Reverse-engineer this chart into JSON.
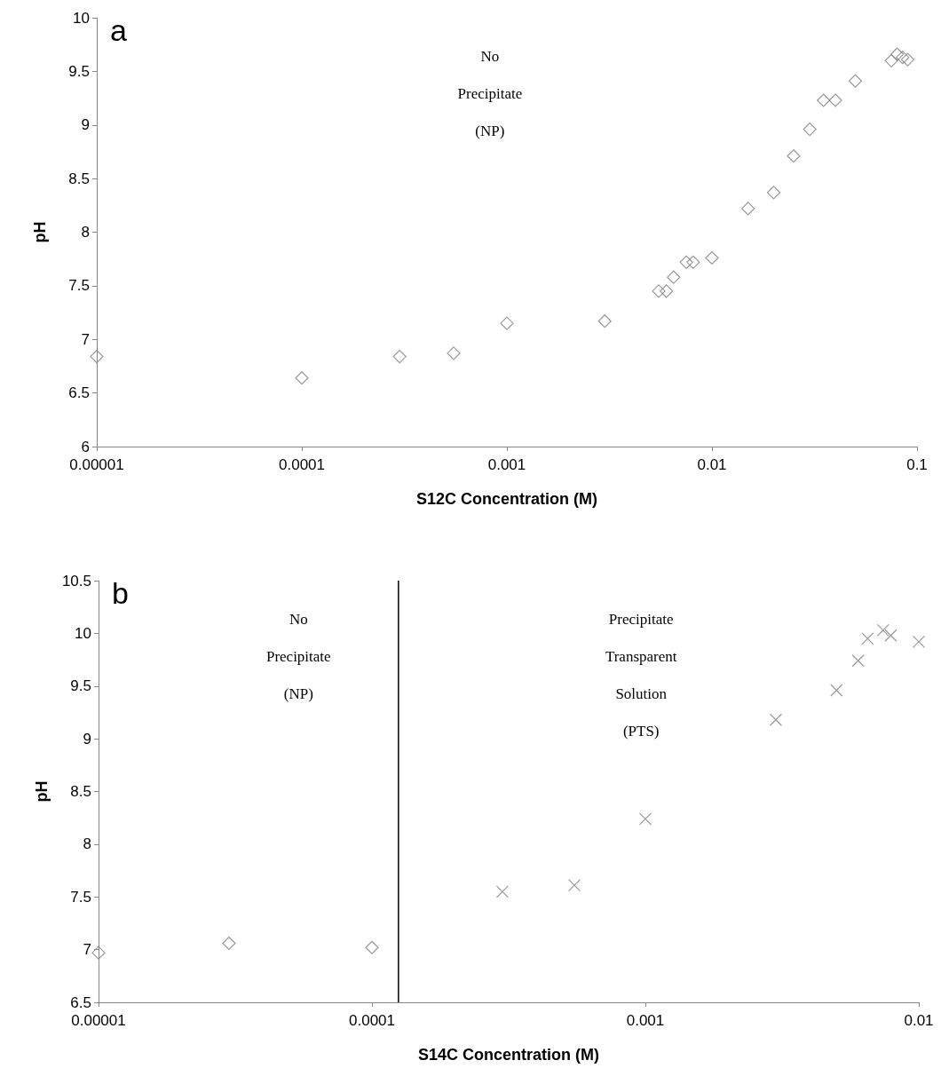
{
  "chart_data": [
    {
      "type": "scatter",
      "title": "a",
      "xlabel": "S12C Concentration (M)",
      "ylabel": "pH",
      "log": "x",
      "grid": false,
      "xlim": [
        1e-05,
        0.1
      ],
      "xticks": [
        {
          "value": 1e-05,
          "label": "0.00001"
        },
        0.0001,
        0.001,
        0.01,
        0.1
      ],
      "ylim": [
        6,
        10
      ],
      "yticks": [
        6,
        6.5,
        7,
        7.5,
        8,
        8.5,
        9,
        9.5,
        10
      ],
      "annotations": [
        "No Precipitate (NP)"
      ],
      "series": [
        {
          "color": "#808080",
          "marker": "diamond",
          "x": [
            1e-05,
            0.0001,
            0.0003,
            0.00055,
            0.001,
            0.003,
            0.0055,
            0.006,
            0.0065,
            0.0075,
            0.0081,
            0.01,
            0.015,
            0.02,
            0.025,
            0.03,
            0.035,
            0.04,
            0.05,
            0.075,
            0.08,
            0.085,
            0.09
          ],
          "values": [
            6.84,
            6.64,
            6.84,
            6.87,
            7.15,
            7.17,
            7.45,
            7.45,
            7.58,
            7.72,
            7.72,
            7.76,
            8.22,
            8.37,
            8.71,
            8.96,
            9.23,
            9.23,
            9.41,
            9.6,
            9.66,
            9.63,
            9.61
          ]
        }
      ]
    },
    {
      "type": "scatter",
      "title": "b",
      "xlabel": "S14C Concentration (M)",
      "ylabel": "pH",
      "log": "x",
      "grid": false,
      "xlim": [
        1e-05,
        0.01
      ],
      "xticks": [
        {
          "value": 1e-05,
          "label": "0.00001"
        },
        0.0001,
        0.001,
        0.01
      ],
      "ylim": [
        6.5,
        10.5
      ],
      "yticks": [
        6.5,
        7,
        7.5,
        8,
        8.5,
        9,
        9.5,
        10,
        10.5
      ],
      "annotations": [
        "No Precipitate (NP)",
        "Precipitate Transparent Solution (PTS)"
      ],
      "ref_lines": [
        {
          "axis": "x",
          "value": 0.000125,
          "color": "#000000"
        }
      ],
      "series": [
        {
          "color": "#808080",
          "marker": "diamond",
          "x": [
            1e-05,
            3e-05,
            0.0001
          ],
          "values": [
            6.97,
            7.06,
            7.02
          ]
        },
        {
          "color": "#808080",
          "marker": "cross",
          "x": [
            0.0003,
            0.00055,
            0.001,
            0.003,
            0.005,
            0.006,
            0.0065,
            0.0074,
            0.0079,
            0.01
          ],
          "values": [
            7.55,
            7.61,
            8.24,
            9.18,
            9.46,
            9.74,
            9.95,
            10.03,
            9.98,
            9.92
          ]
        }
      ]
    }
  ]
}
